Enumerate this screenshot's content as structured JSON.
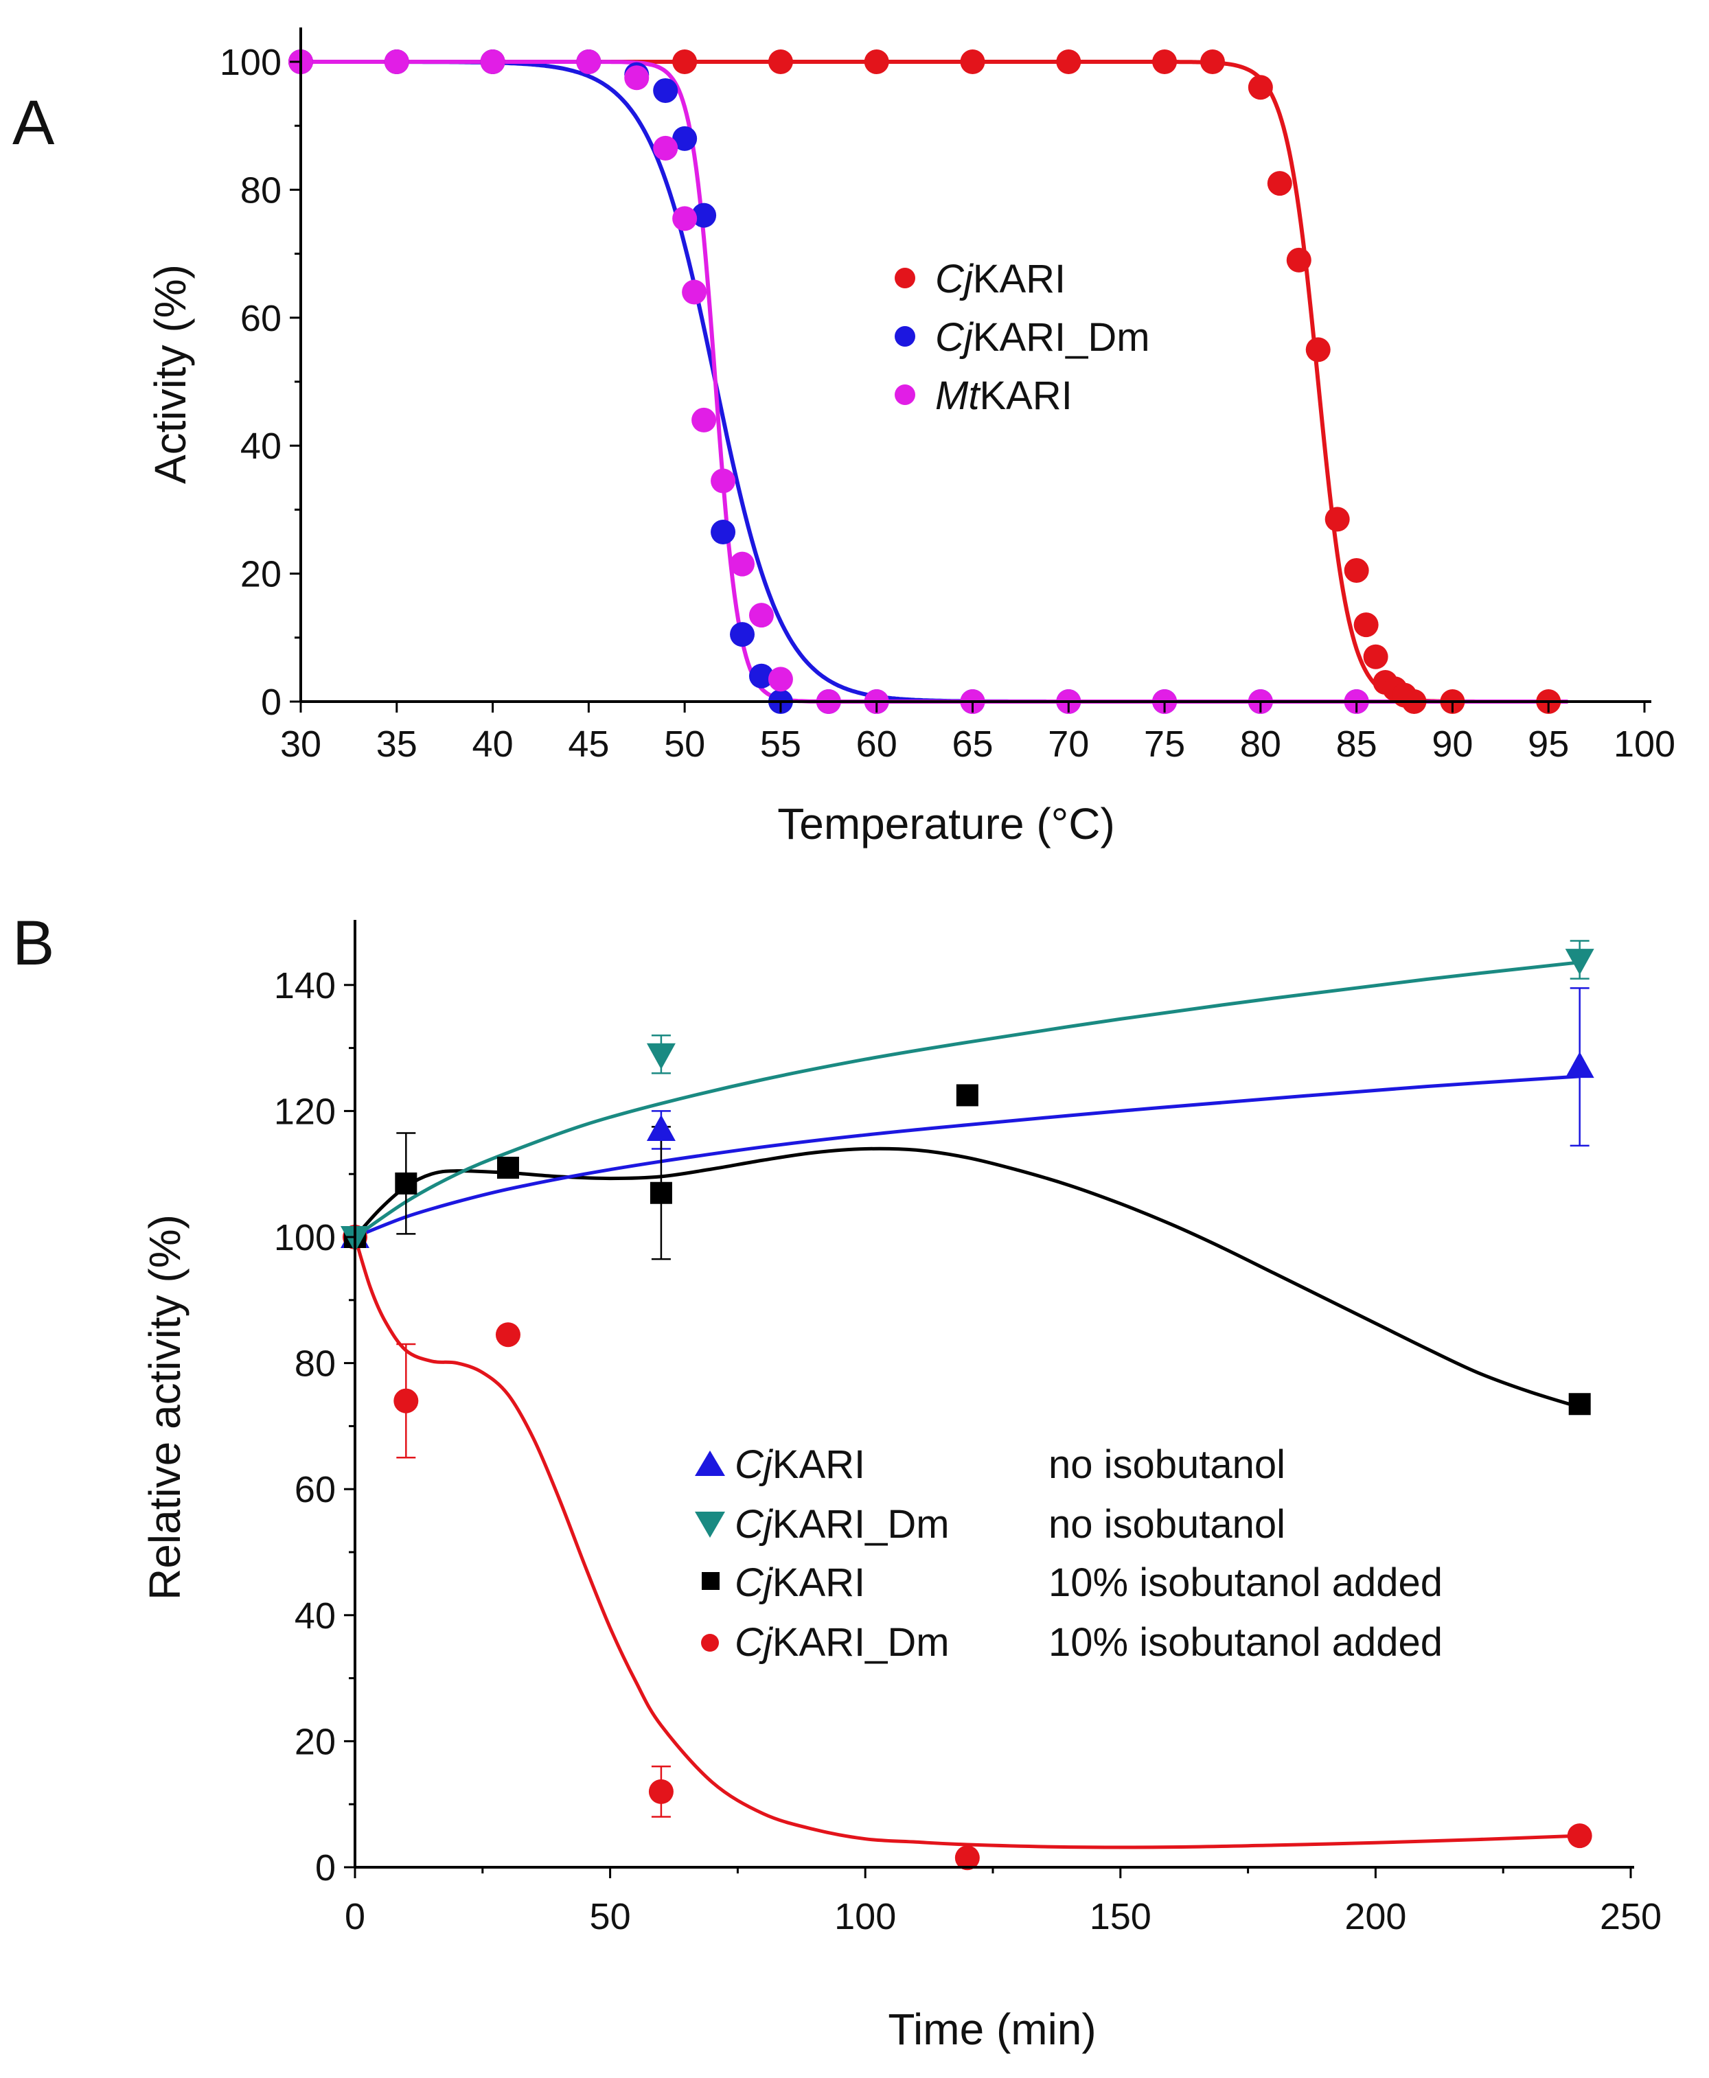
{
  "chart_data": [
    {
      "panel": "A",
      "type": "scatter",
      "xlabel": "Temperature (°C)",
      "ylabel": "Activity (%)",
      "xlim": [
        30,
        100
      ],
      "ylim": [
        0,
        100
      ],
      "xticks": [
        30,
        35,
        40,
        45,
        50,
        55,
        60,
        65,
        70,
        75,
        80,
        85,
        90,
        95,
        100
      ],
      "yticks": [
        0,
        20,
        40,
        60,
        80,
        100
      ],
      "legend_position": "center",
      "series": [
        {
          "name_italic": "Cj",
          "name_rest": "KARI",
          "color": "#e3141b",
          "marker": "circle",
          "x": [
            30,
            35,
            40,
            45,
            50,
            55,
            60,
            65,
            70,
            75,
            77.5,
            80,
            81,
            82,
            83,
            84,
            85,
            85.5,
            86,
            86.5,
            87,
            87.5,
            88,
            90,
            95
          ],
          "y": [
            100,
            100,
            100,
            100,
            100,
            100,
            100,
            100,
            100,
            100,
            100,
            96,
            81,
            69,
            55,
            28.5,
            20.5,
            12,
            7,
            3,
            2,
            1,
            0,
            0,
            0
          ],
          "fit": {
            "kind": "sigmoid",
            "tm": 83.0,
            "k": 0.83
          }
        },
        {
          "name_italic": "Cj",
          "name_rest": "KARI_Dm",
          "color": "#1c17e0",
          "marker": "circle",
          "x": [
            30,
            35,
            40,
            45,
            47.5,
            49,
            50,
            51,
            52,
            53,
            54,
            55,
            57.5,
            60,
            65,
            70,
            75,
            80,
            85
          ],
          "y": [
            100,
            100,
            100,
            100,
            98,
            95.5,
            88,
            76,
            26.5,
            10.5,
            4,
            0,
            0,
            0,
            0,
            0,
            0,
            0,
            0
          ],
          "fit": {
            "kind": "sigmoid",
            "tm": 51.6,
            "k": 1.75
          }
        },
        {
          "name_italic": "Mt",
          "name_rest": "KARI",
          "color": "#e11ee6",
          "marker": "circle",
          "x": [
            30,
            35,
            40,
            45,
            47.5,
            49,
            50,
            50.5,
            51,
            52,
            53,
            54,
            55,
            57.5,
            60,
            65,
            70,
            75,
            80,
            85
          ],
          "y": [
            100,
            100,
            100,
            100,
            97.5,
            86.5,
            75.5,
            64,
            44,
            34.5,
            21.5,
            13.5,
            3.5,
            0,
            0,
            0,
            0,
            0,
            0,
            0
          ],
          "fit": {
            "kind": "sigmoid",
            "tm": 51.6,
            "k": 0.62
          }
        }
      ]
    },
    {
      "panel": "B",
      "type": "scatter",
      "xlabel": "Time (min)",
      "ylabel": "Relative activity (%)",
      "xlim": [
        0,
        250
      ],
      "ylim": [
        0,
        150
      ],
      "xticks": [
        0,
        50,
        100,
        150,
        200,
        250
      ],
      "yticks": [
        0,
        20,
        40,
        60,
        80,
        100,
        120,
        140
      ],
      "legend_position": "center-right",
      "series": [
        {
          "name_italic": "Cj",
          "name_rest": "KARI",
          "condition": "no isobutanol",
          "color": "#1c17e0",
          "marker": "triangle-up",
          "x": [
            0,
            60,
            240
          ],
          "y": [
            100,
            117,
            127
          ],
          "err": [
            0,
            3,
            12.5
          ],
          "fit": {
            "x": [
              0,
              10,
              20,
              30,
              45,
              60,
              80,
              100,
              120,
              150,
              180,
              210,
              240
            ],
            "y": [
              100,
              103.2,
              105.6,
              107.6,
              110.0,
              112.0,
              114.3,
              116.2,
              117.8,
              120.0,
              122.0,
              123.9,
              125.5
            ]
          }
        },
        {
          "name_italic": "Cj",
          "name_rest": "KARI_Dm",
          "condition": "no isobutanol",
          "color": "#1a8a82",
          "marker": "triangle-down",
          "x": [
            0,
            60,
            240
          ],
          "y": [
            100,
            129,
            144
          ],
          "err": [
            0,
            3,
            3
          ],
          "fit": {
            "x": [
              0,
              10,
              20,
              30,
              45,
              60,
              80,
              100,
              120,
              150,
              180,
              210,
              240
            ],
            "y": [
              100,
              105.6,
              110.0,
              113.4,
              117.8,
              121.2,
              125.0,
              128.2,
              130.9,
              134.6,
              137.9,
              140.9,
              143.6
            ]
          }
        },
        {
          "name_italic": "Cj",
          "name_rest": "KARI",
          "condition": "10% isobutanol added",
          "color": "#000000",
          "marker": "square",
          "x": [
            0,
            10,
            30,
            60,
            120,
            240
          ],
          "y": [
            100,
            108.5,
            111,
            107,
            122.5,
            73.5
          ],
          "err": [
            0,
            8,
            0,
            10.5,
            0,
            0
          ],
          "fit": {
            "x": [
              0,
              5,
              10,
              15,
              20,
              30,
              40,
              50,
              60,
              70,
              80,
              90,
              100,
              110,
              120,
              130,
              140,
              150,
              160,
              170,
              180,
              190,
              200,
              210,
              220,
              230,
              240
            ],
            "y": [
              100,
              104.5,
              108,
              110,
              110.5,
              110.2,
              109.6,
              109.3,
              109.6,
              110.8,
              112.2,
              113.4,
              114,
              113.8,
              112.6,
              110.6,
              108.2,
              105.3,
              102,
              98.3,
              94.3,
              90.3,
              86.3,
              82.3,
              78.5,
              75.5,
              73
            ]
          }
        },
        {
          "name_italic": "Cj",
          "name_rest": "KARI_Dm",
          "condition": "10% isobutanol added",
          "color": "#e3141b",
          "marker": "circle",
          "x": [
            0,
            10,
            30,
            60,
            120,
            240
          ],
          "y": [
            100,
            74,
            84.5,
            12,
            1.5,
            5
          ],
          "err": [
            0,
            9,
            0,
            4,
            0,
            0
          ],
          "fit": {
            "x": [
              0,
              3,
              6,
              10,
              15,
              20,
              25,
              30,
              35,
              40,
              45,
              50,
              55,
              60,
              70,
              80,
              90,
              100,
              110,
              120,
              140,
              160,
              180,
              200,
              220,
              240
            ],
            "y": [
              100,
              92,
              86.5,
              82,
              80.3,
              80,
              78.5,
              75,
              68,
              58.5,
              48,
              38,
              29.5,
              22.5,
              13.5,
              8.5,
              6,
              4.5,
              4,
              3.6,
              3.2,
              3.2,
              3.5,
              3.9,
              4.4,
              5
            ]
          }
        }
      ]
    }
  ]
}
